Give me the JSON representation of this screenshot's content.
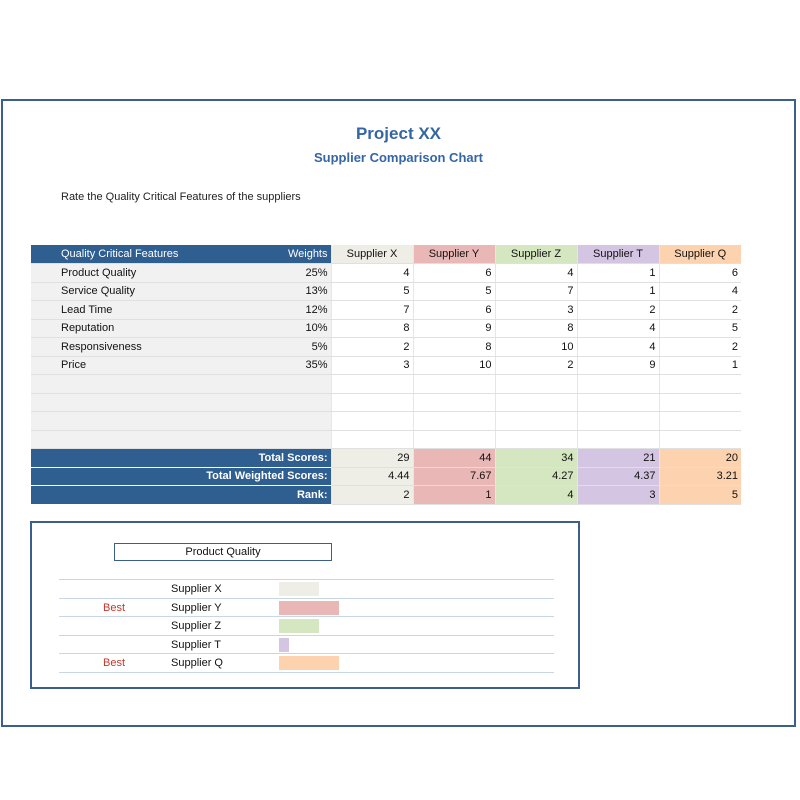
{
  "title": "Project XX",
  "subtitle": "Supplier Comparison Chart",
  "instruction": "Rate the Quality Critical Features of the suppliers",
  "table": {
    "header_feature": "Quality Critical Features",
    "header_weights": "Weights",
    "suppliers": [
      "Supplier X",
      "Supplier Y",
      "Supplier Z",
      "Supplier T",
      "Supplier Q"
    ],
    "supplier_colors": [
      "#eeede6",
      "#e9b8b6",
      "#d5e7c0",
      "#d4c5e2",
      "#fcd3ae"
    ],
    "rows": [
      {
        "feature": "Product Quality",
        "weight": "25%",
        "scores": [
          "4",
          "6",
          "4",
          "1",
          "6"
        ]
      },
      {
        "feature": "Service Quality",
        "weight": "13%",
        "scores": [
          "5",
          "5",
          "7",
          "1",
          "4"
        ]
      },
      {
        "feature": "Lead Time",
        "weight": "12%",
        "scores": [
          "7",
          "6",
          "3",
          "2",
          "2"
        ]
      },
      {
        "feature": "Reputation",
        "weight": "10%",
        "scores": [
          "8",
          "9",
          "8",
          "4",
          "5"
        ]
      },
      {
        "feature": "Responsiveness",
        "weight": "5%",
        "scores": [
          "2",
          "8",
          "10",
          "4",
          "2"
        ]
      },
      {
        "feature": "Price",
        "weight": "35%",
        "scores": [
          "3",
          "10",
          "2",
          "9",
          "1"
        ]
      }
    ],
    "total_scores_label": "Total Scores:",
    "total_scores": [
      "29",
      "44",
      "34",
      "21",
      "20"
    ],
    "total_weighted_label": "Total Weighted Scores:",
    "total_weighted": [
      "4.44",
      "7.67",
      "4.27",
      "4.37",
      "3.21"
    ],
    "rank_label": "Rank:",
    "rank": [
      "2",
      "1",
      "4",
      "3",
      "5"
    ]
  },
  "panel": {
    "selected_feature": "Product Quality",
    "max_score": 6,
    "rows": [
      {
        "badge": "",
        "name": "Supplier X",
        "value": 4
      },
      {
        "badge": "Best",
        "name": "Supplier Y",
        "value": 6
      },
      {
        "badge": "",
        "name": "Supplier Z",
        "value": 4
      },
      {
        "badge": "",
        "name": "Supplier T",
        "value": 1
      },
      {
        "badge": "Best",
        "name": "Supplier Q",
        "value": 6
      }
    ]
  }
}
